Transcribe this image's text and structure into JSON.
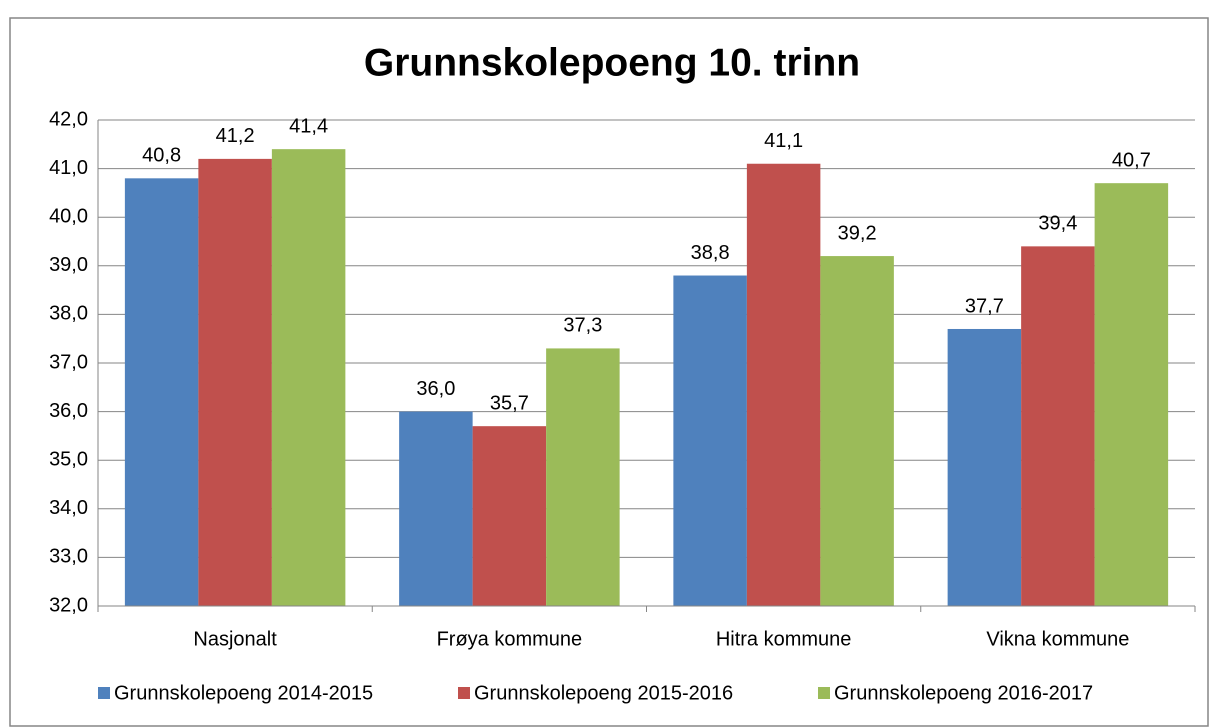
{
  "chart_data": {
    "type": "bar",
    "title": "Grunnskolepoeng 10. trinn",
    "categories": [
      "Nasjonalt",
      "Frøya kommune",
      "Hitra kommune",
      "Vikna kommune"
    ],
    "series": [
      {
        "name": "Grunnskolepoeng 2014-2015",
        "color": "#4f81bd",
        "values": [
          40.8,
          36.0,
          38.8,
          37.7
        ],
        "value_labels": [
          "40,8",
          "36,0",
          "38,8",
          "37,7"
        ]
      },
      {
        "name": "Grunnskolepoeng 2015-2016",
        "color": "#c0504d",
        "values": [
          41.2,
          35.7,
          41.1,
          39.4
        ],
        "value_labels": [
          "41,2",
          "35,7",
          "41,1",
          "39,4"
        ]
      },
      {
        "name": "Grunnskolepoeng 2016-2017",
        "color": "#9bbb59",
        "values": [
          41.4,
          37.3,
          39.2,
          40.7
        ],
        "value_labels": [
          "41,4",
          "37,3",
          "39,2",
          "40,7"
        ]
      }
    ],
    "ylim": [
      32,
      42
    ],
    "yticks": [
      {
        "value": 32,
        "label": "32,0"
      },
      {
        "value": 33,
        "label": "33,0"
      },
      {
        "value": 34,
        "label": "34,0"
      },
      {
        "value": 35,
        "label": "35,0"
      },
      {
        "value": 36,
        "label": "36,0"
      },
      {
        "value": 37,
        "label": "37,0"
      },
      {
        "value": 38,
        "label": "38,0"
      },
      {
        "value": 39,
        "label": "39,0"
      },
      {
        "value": 40,
        "label": "40,0"
      },
      {
        "value": 41,
        "label": "41,0"
      },
      {
        "value": 42,
        "label": "42,0"
      }
    ],
    "grid": true,
    "legend": "bottom"
  }
}
